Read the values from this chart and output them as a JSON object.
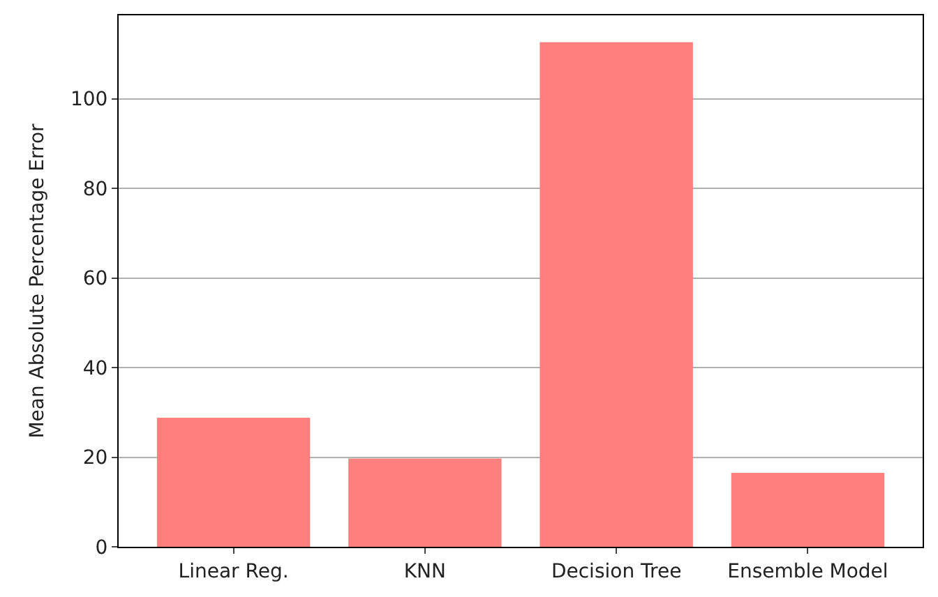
{
  "chart_data": {
    "type": "bar",
    "ylabel": "Mean Absolute Percentage Error",
    "categories": [
      "Linear Reg.",
      "KNN",
      "Decision Tree",
      "Ensemble Model"
    ],
    "values": [
      28.8,
      19.7,
      112.6,
      16.5
    ],
    "color": "#ff7f7f",
    "ylim": [
      0,
      118.6
    ],
    "yticks": [
      0,
      20,
      40,
      60,
      80,
      100
    ],
    "grid": "y"
  }
}
